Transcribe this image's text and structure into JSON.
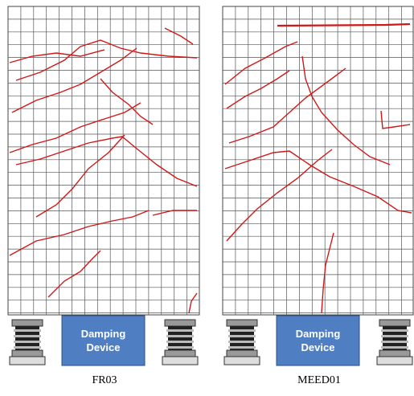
{
  "panels": [
    {
      "label": "FR03",
      "device": "Damping Device"
    },
    {
      "label": "MEED01",
      "device": "Damping Device"
    }
  ]
}
